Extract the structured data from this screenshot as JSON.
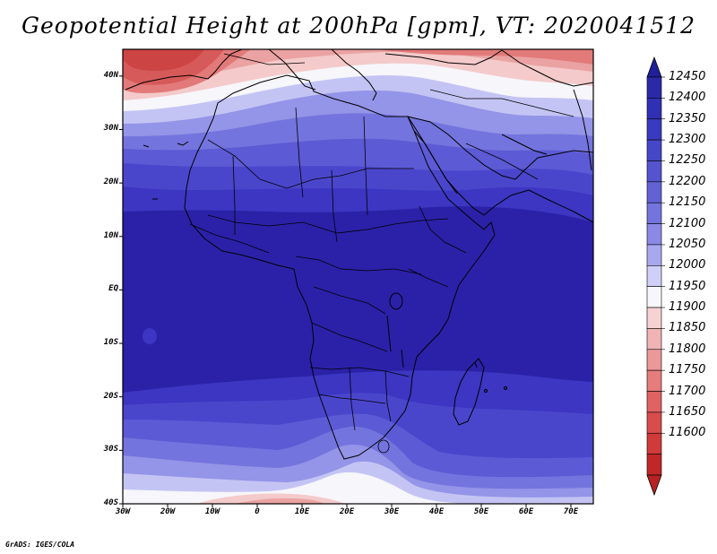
{
  "title": "Geopotential Height at 200hPa [gpm], VT: 2020041512",
  "credit": "GrADS: IGES/COLA",
  "map": {
    "region": "Africa",
    "variable": "Geopotential Height",
    "level": "200hPa",
    "units": "gpm",
    "valid_time": "2020041512",
    "lon_range": [
      -30,
      75
    ],
    "lat_range": [
      -40,
      45
    ]
  },
  "axes": {
    "lat_ticks": [
      {
        "value": 40,
        "label": "40N"
      },
      {
        "value": 30,
        "label": "30N"
      },
      {
        "value": 20,
        "label": "20N"
      },
      {
        "value": 10,
        "label": "10N"
      },
      {
        "value": 0,
        "label": "EQ"
      },
      {
        "value": -10,
        "label": "10S"
      },
      {
        "value": -20,
        "label": "20S"
      },
      {
        "value": -30,
        "label": "30S"
      },
      {
        "value": -40,
        "label": "40S"
      }
    ],
    "lon_ticks": [
      {
        "value": -30,
        "label": "30W"
      },
      {
        "value": -20,
        "label": "20W"
      },
      {
        "value": -10,
        "label": "10W"
      },
      {
        "value": 0,
        "label": "0"
      },
      {
        "value": 10,
        "label": "10E"
      },
      {
        "value": 20,
        "label": "20E"
      },
      {
        "value": 30,
        "label": "30E"
      },
      {
        "value": 40,
        "label": "40E"
      },
      {
        "value": 50,
        "label": "50E"
      },
      {
        "value": 60,
        "label": "60E"
      },
      {
        "value": 70,
        "label": "70E"
      }
    ]
  },
  "colorbar": {
    "labels": [
      "12450",
      "12400",
      "12350",
      "12300",
      "12250",
      "12200",
      "12150",
      "12100",
      "12050",
      "12000",
      "11950",
      "11900",
      "11850",
      "11800",
      "11750",
      "11700",
      "11650",
      "11600"
    ],
    "colors": [
      "#2a2aa8",
      "#3030b5",
      "#3a3ac0",
      "#4646c8",
      "#5454cf",
      "#6262d6",
      "#7474de",
      "#8a8ae6",
      "#a8a8ef",
      "#cfcff7",
      "#f7f7fb",
      "#f7d2d2",
      "#f0b4b4",
      "#eb9898",
      "#e67c7c",
      "#e06262",
      "#d94c4c",
      "#d03a3a",
      "#c02828"
    ],
    "top_triangle_color": "#1f1f9a",
    "bottom_triangle_color": "#b82222"
  },
  "field_colors": {
    "deep": "#2b21a8",
    "band_1": "#3c36c2",
    "band_2": "#4a46cc",
    "band_3": "#5c5ad4",
    "band_4": "#7474de",
    "band_5": "#9494e8",
    "band_6": "#c4c4f4",
    "white": "#f6f6fb",
    "red_1": "#f4caca",
    "red_2": "#eaa2a2",
    "red_3": "#e27a7a",
    "red_4": "#d75a5a",
    "red_5": "#cc4444"
  }
}
